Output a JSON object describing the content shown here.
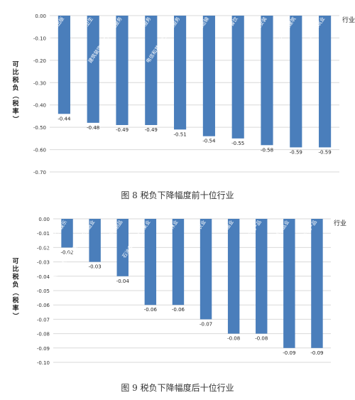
{
  "chart_data": [
    {
      "type": "bar",
      "caption": "图 8 税负下降幅度前十位行业",
      "ylabel": "可比税负（税率）",
      "xaxis_label": "行业",
      "categories": [
        "新闻和出版",
        "卫生",
        "建筑装饰和其他建筑服务",
        "商务服务",
        "电信和其他信息传输服务",
        "航空运输",
        "餐饮",
        "建筑安装",
        "土木工程建筑",
        "房屋建筑业"
      ],
      "values": [
        -0.44,
        -0.48,
        -0.49,
        -0.49,
        -0.51,
        -0.54,
        -0.55,
        -0.58,
        -0.59,
        -0.59
      ],
      "data_labels": [
        "-0.44",
        "-0.48",
        "-0.49",
        "-0.49",
        "-0.51",
        "-0.54",
        "-0.55",
        "-0.58",
        "-0.59",
        "-0.59"
      ],
      "ylim": [
        -0.7,
        0.0
      ],
      "yticks": [
        "0.00",
        "-0.10",
        "-0.20",
        "-0.30",
        "-0.40",
        "-0.50",
        "-0.60",
        "-0.70"
      ],
      "grid": true,
      "bar_color": "#4a7ebb"
    },
    {
      "type": "bar",
      "caption": "图 9 税负下降幅度后十位行业",
      "ylabel": "可比税负（税率）",
      "xaxis_label": "行业",
      "categories": [
        "文化艺术和娱乐",
        "计算机通信和其他电子设备制造业",
        "烟草制品",
        "石油和天然气开采业",
        "林业",
        "农业",
        "渔业",
        "煤炭采选产品",
        "金属制品业",
        "畜牧产品"
      ],
      "values": [
        -0.02,
        -0.03,
        -0.04,
        -0.06,
        -0.06,
        -0.07,
        -0.08,
        -0.08,
        -0.09,
        -0.09
      ],
      "data_labels": [
        "-0.02",
        "-0.03",
        "-0.04",
        "-0.06",
        "-0.06",
        "-0.07",
        "-0.08",
        "-0.08",
        "-0.09",
        "-0.09"
      ],
      "ylim": [
        -0.1,
        0.0
      ],
      "yticks": [
        "0.00",
        "-0.01",
        "-0.02",
        "-0.03",
        "-0.04",
        "-0.05",
        "-0.06",
        "-0.07",
        "-0.08",
        "-0.09",
        "-0.10"
      ],
      "grid": true,
      "bar_color": "#4a7ebb"
    }
  ]
}
